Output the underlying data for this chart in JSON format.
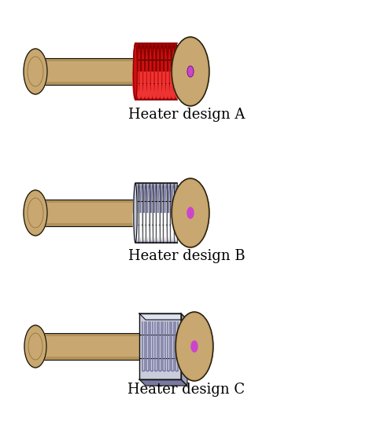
{
  "background_color": "#ffffff",
  "labels": [
    "Heater design A",
    "Heater design B",
    "Heater design C"
  ],
  "label_fontsize": 13,
  "figsize": [
    4.74,
    5.41
  ],
  "dpi": 100,
  "tan_body": "#C8A870",
  "tan_light": "#D4B87A",
  "tan_dark": "#8B6B35",
  "tan_mid": "#B09050",
  "red_heater": "#CC1111",
  "red_light": "#EE3333",
  "red_dark": "#880000",
  "silver": "#C8CCDC",
  "silver_light": "#E0E4F0",
  "silver_dark": "#7878A0",
  "outline": "#111111",
  "hole_color": "#CC44CC",
  "white_bg": "#FFFFFF"
}
